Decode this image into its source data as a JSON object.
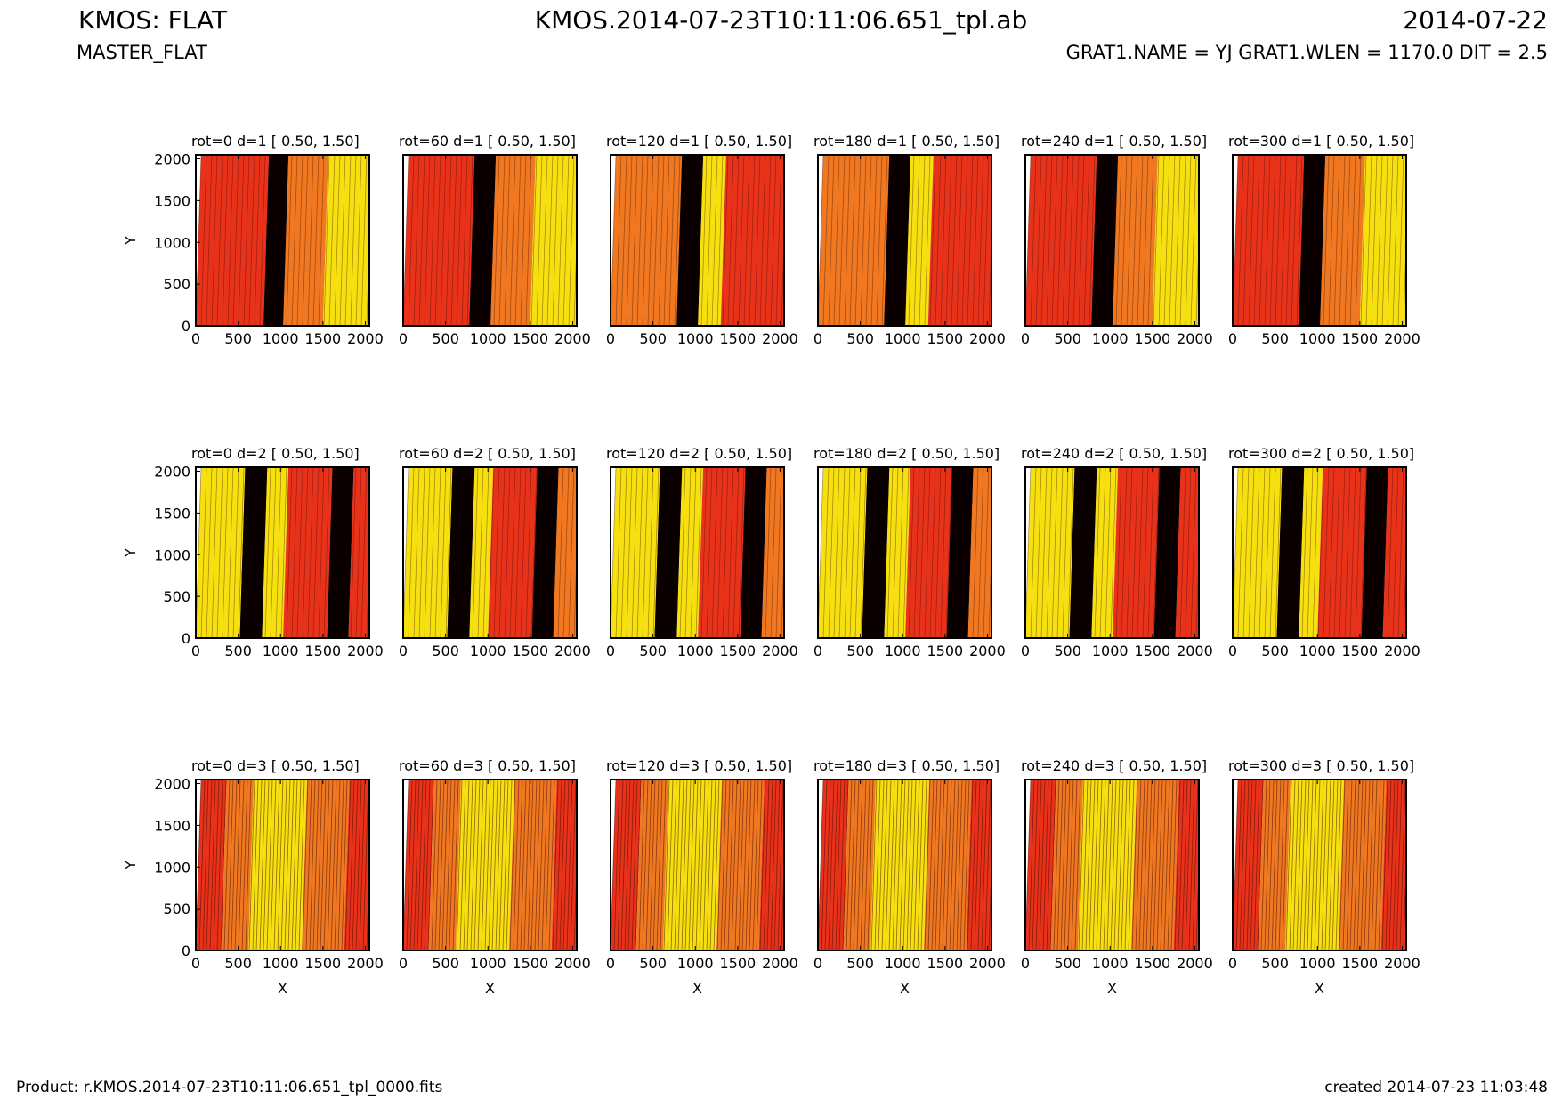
{
  "header": {
    "title": "KMOS: FLAT",
    "subtitle": "MASTER_FLAT",
    "file": "KMOS.2014-07-23T10:11:06.651_tpl.ab",
    "date": "2014-07-22",
    "info": "GRAT1.NAME = YJ GRAT1.WLEN = 1170.0 DIT = 2.5"
  },
  "footer": {
    "product": "Product: r.KMOS.2014-07-23T10:11:06.651_tpl_0000.fits",
    "created": "created 2014-07-23 11:03:48"
  },
  "colors": {
    "dark": "#0b0000",
    "red": "#e8321a",
    "orange": "#f07820",
    "yellow": "#f7e010"
  },
  "chart_data": {
    "type": "heatmap",
    "description_note": "",
    "xlabel": "X",
    "ylabel": "Y",
    "xlim": [
      0,
      2048
    ],
    "ylim": [
      0,
      2048
    ],
    "xticks": [
      0,
      500,
      1000,
      1500,
      2000
    ],
    "yticks": [
      0,
      500,
      1000,
      1500,
      2000
    ],
    "panels": [
      {
        "title": "rot=0   d=1 [ 0.50, 1.50]",
        "row": 1,
        "col": 1,
        "stripes": [
          [
            0,
            800,
            "red"
          ],
          [
            800,
            1030,
            "dark"
          ],
          [
            1030,
            1500,
            "orange"
          ],
          [
            1500,
            2048,
            "yellow"
          ]
        ]
      },
      {
        "title": "rot=60  d=1 [ 0.50, 1.50]",
        "row": 1,
        "col": 2,
        "stripes": [
          [
            0,
            780,
            "red"
          ],
          [
            780,
            1030,
            "dark"
          ],
          [
            1030,
            1500,
            "orange"
          ],
          [
            1500,
            2048,
            "yellow"
          ]
        ]
      },
      {
        "title": "rot=120 d=1 [ 0.50, 1.50]",
        "row": 1,
        "col": 3,
        "stripes": [
          [
            0,
            780,
            "orange"
          ],
          [
            780,
            1030,
            "dark"
          ],
          [
            1030,
            1300,
            "yellow"
          ],
          [
            1300,
            2048,
            "red"
          ]
        ]
      },
      {
        "title": "rot=180 d=1 [ 0.50, 1.50]",
        "row": 1,
        "col": 4,
        "stripes": [
          [
            0,
            780,
            "orange"
          ],
          [
            780,
            1030,
            "dark"
          ],
          [
            1030,
            1300,
            "yellow"
          ],
          [
            1300,
            2048,
            "red"
          ]
        ]
      },
      {
        "title": "rot=240 d=1 [ 0.50, 1.50]",
        "row": 1,
        "col": 5,
        "stripes": [
          [
            0,
            780,
            "red"
          ],
          [
            780,
            1030,
            "dark"
          ],
          [
            1030,
            1500,
            "orange"
          ],
          [
            1500,
            2048,
            "yellow"
          ]
        ]
      },
      {
        "title": "rot=300 d=1 [ 0.50, 1.50]",
        "row": 1,
        "col": 6,
        "stripes": [
          [
            0,
            780,
            "red"
          ],
          [
            780,
            1030,
            "dark"
          ],
          [
            1030,
            1500,
            "orange"
          ],
          [
            1500,
            2048,
            "yellow"
          ]
        ]
      },
      {
        "title": "rot=0   d=2 [ 0.50, 1.50]",
        "row": 2,
        "col": 1,
        "stripes": [
          [
            0,
            520,
            "yellow"
          ],
          [
            520,
            780,
            "dark"
          ],
          [
            780,
            1030,
            "yellow"
          ],
          [
            1030,
            1550,
            "red"
          ],
          [
            1550,
            1800,
            "dark"
          ],
          [
            1800,
            2048,
            "red"
          ]
        ]
      },
      {
        "title": "rot=60  d=2 [ 0.50, 1.50]",
        "row": 2,
        "col": 2,
        "stripes": [
          [
            0,
            520,
            "yellow"
          ],
          [
            520,
            780,
            "dark"
          ],
          [
            780,
            1000,
            "yellow"
          ],
          [
            1000,
            1520,
            "red"
          ],
          [
            1520,
            1770,
            "dark"
          ],
          [
            1770,
            2048,
            "orange"
          ]
        ]
      },
      {
        "title": "rot=120 d=2 [ 0.50, 1.50]",
        "row": 2,
        "col": 3,
        "stripes": [
          [
            0,
            520,
            "yellow"
          ],
          [
            520,
            780,
            "dark"
          ],
          [
            780,
            1030,
            "yellow"
          ],
          [
            1030,
            1530,
            "red"
          ],
          [
            1530,
            1780,
            "dark"
          ],
          [
            1780,
            2048,
            "orange"
          ]
        ]
      },
      {
        "title": "rot=180 d=2 [ 0.50, 1.50]",
        "row": 2,
        "col": 4,
        "stripes": [
          [
            0,
            520,
            "yellow"
          ],
          [
            520,
            780,
            "dark"
          ],
          [
            780,
            1030,
            "yellow"
          ],
          [
            1030,
            1520,
            "red"
          ],
          [
            1520,
            1770,
            "dark"
          ],
          [
            1770,
            2048,
            "orange"
          ]
        ]
      },
      {
        "title": "rot=240 d=2 [ 0.50, 1.50]",
        "row": 2,
        "col": 5,
        "stripes": [
          [
            0,
            520,
            "yellow"
          ],
          [
            520,
            780,
            "dark"
          ],
          [
            780,
            1030,
            "yellow"
          ],
          [
            1030,
            1520,
            "red"
          ],
          [
            1520,
            1770,
            "dark"
          ],
          [
            1770,
            2048,
            "red"
          ]
        ]
      },
      {
        "title": "rot=300 d=2 [ 0.50, 1.50]",
        "row": 2,
        "col": 6,
        "stripes": [
          [
            0,
            520,
            "yellow"
          ],
          [
            520,
            780,
            "dark"
          ],
          [
            780,
            1000,
            "yellow"
          ],
          [
            1000,
            1520,
            "red"
          ],
          [
            1520,
            1770,
            "dark"
          ],
          [
            1770,
            2048,
            "red"
          ]
        ]
      },
      {
        "title": "rot=0   d=3 [ 0.50, 1.50]",
        "row": 3,
        "col": 1,
        "stripes": [
          [
            0,
            300,
            "red"
          ],
          [
            300,
            620,
            "orange"
          ],
          [
            620,
            1250,
            "yellow"
          ],
          [
            1250,
            1750,
            "orange"
          ],
          [
            1750,
            2048,
            "red"
          ]
        ]
      },
      {
        "title": "rot=60  d=3 [ 0.50, 1.50]",
        "row": 3,
        "col": 2,
        "stripes": [
          [
            0,
            300,
            "red"
          ],
          [
            300,
            620,
            "orange"
          ],
          [
            620,
            1250,
            "yellow"
          ],
          [
            1250,
            1750,
            "orange"
          ],
          [
            1750,
            2048,
            "red"
          ]
        ]
      },
      {
        "title": "rot=120 d=3 [ 0.50, 1.50]",
        "row": 3,
        "col": 3,
        "stripes": [
          [
            0,
            300,
            "red"
          ],
          [
            300,
            620,
            "orange"
          ],
          [
            620,
            1250,
            "yellow"
          ],
          [
            1250,
            1750,
            "orange"
          ],
          [
            1750,
            2048,
            "red"
          ]
        ]
      },
      {
        "title": "rot=180 d=3 [ 0.50, 1.50]",
        "row": 3,
        "col": 4,
        "stripes": [
          [
            0,
            300,
            "red"
          ],
          [
            300,
            620,
            "orange"
          ],
          [
            620,
            1250,
            "yellow"
          ],
          [
            1250,
            1750,
            "orange"
          ],
          [
            1750,
            2048,
            "red"
          ]
        ]
      },
      {
        "title": "rot=240 d=3 [ 0.50, 1.50]",
        "row": 3,
        "col": 5,
        "stripes": [
          [
            0,
            300,
            "red"
          ],
          [
            300,
            620,
            "orange"
          ],
          [
            620,
            1250,
            "yellow"
          ],
          [
            1250,
            1750,
            "orange"
          ],
          [
            1750,
            2048,
            "red"
          ]
        ]
      },
      {
        "title": "rot=300 d=3 [ 0.50, 1.50]",
        "row": 3,
        "col": 6,
        "stripes": [
          [
            0,
            300,
            "red"
          ],
          [
            300,
            620,
            "orange"
          ],
          [
            620,
            1250,
            "yellow"
          ],
          [
            1250,
            1750,
            "orange"
          ],
          [
            1750,
            2048,
            "red"
          ]
        ]
      }
    ]
  }
}
